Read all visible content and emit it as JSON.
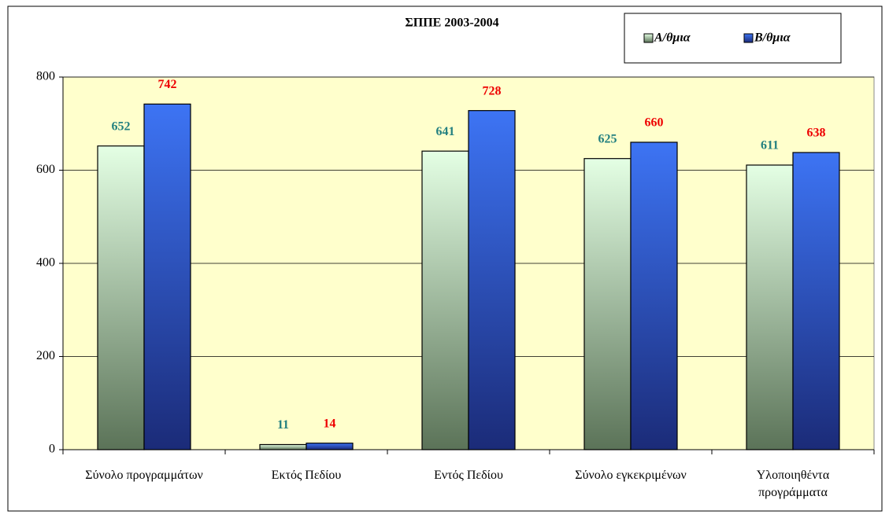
{
  "chart_data": {
    "type": "bar",
    "title": "ΣΠΠΕ  2003-2004",
    "categories": [
      "Σύνολο προγραμμάτων",
      "Εκτός Πεδίου",
      "Εντός Πεδίου",
      "Σύνολο εγκεκριμένων",
      "Υλοποιηθέντα\nπρογράμματα"
    ],
    "series": [
      {
        "name": "Α/θμια",
        "color": "#5b7358",
        "color_top": "#e4ffe4",
        "label_color": "#238080",
        "values": [
          652,
          11,
          641,
          625,
          611
        ]
      },
      {
        "name": "Β/θμια",
        "color": "#1b2b78",
        "color_top": "#3d74f4",
        "label_color": "#ee0000",
        "values": [
          742,
          14,
          728,
          660,
          638
        ]
      }
    ],
    "ylim": [
      0,
      800
    ],
    "yticks": [
      0,
      200,
      400,
      600,
      800
    ],
    "grid": true,
    "legend": "top-right",
    "background": "#ffffcc"
  }
}
